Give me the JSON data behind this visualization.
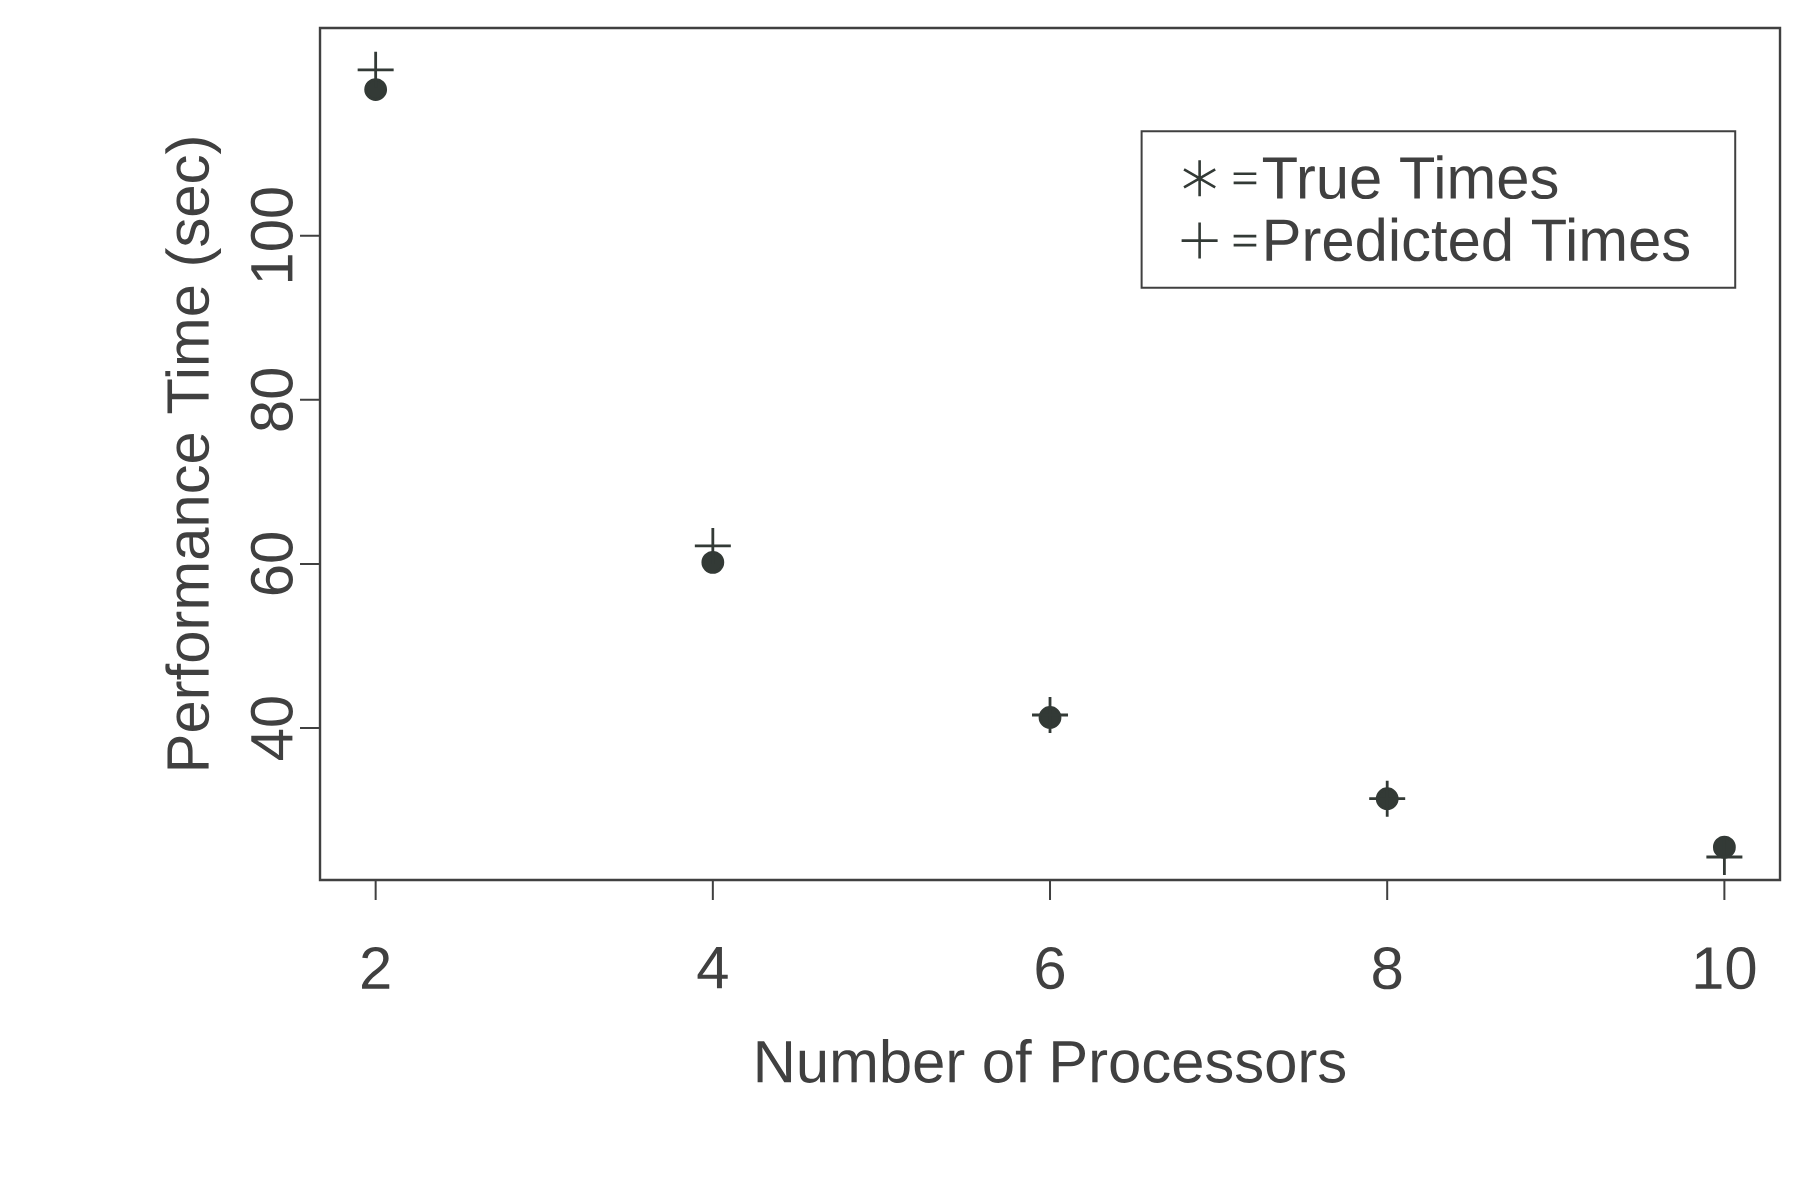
{
  "chart_data": {
    "type": "scatter",
    "xlabel": "Number of Processors",
    "ylabel": "Performance Time (sec)",
    "x": [
      2,
      4,
      6,
      8,
      10
    ],
    "series": [
      {
        "name": "True Times",
        "color": "#333a36",
        "marker": "circle",
        "values": [
          117.8,
          60.2,
          41.3,
          31.4,
          25.5
        ]
      },
      {
        "name": "Predicted Times",
        "color": "#333a36",
        "marker": "cross",
        "values": [
          120.2,
          62.2,
          41.6,
          31.4,
          24.3
        ]
      }
    ],
    "xlim": [
      1.67,
      10.33
    ],
    "ylim": [
      21.5,
      125.3
    ],
    "xticks": [
      2,
      4,
      6,
      8,
      10
    ],
    "yticks": [
      40,
      60,
      80,
      100
    ],
    "legend": "top right",
    "grid": false
  }
}
